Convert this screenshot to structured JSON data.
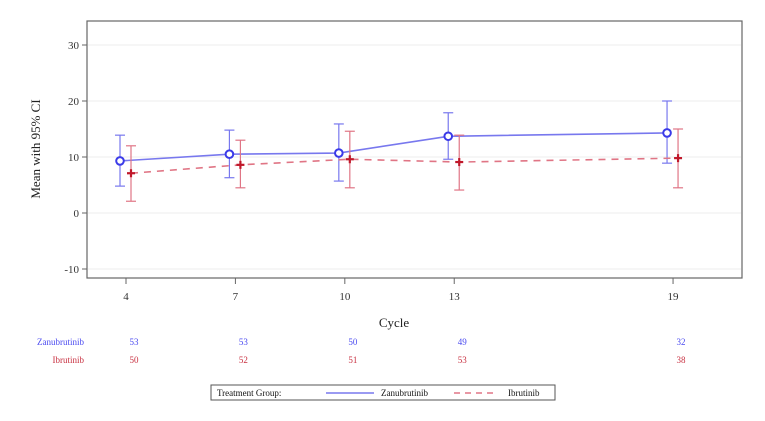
{
  "chart_data": {
    "type": "line",
    "title": "",
    "xlabel": "Cycle",
    "ylabel": "Mean with 95% CI",
    "x": [
      4,
      7,
      10,
      13,
      19
    ],
    "x_tick_labels": [
      "4",
      "7",
      "10",
      "13",
      "19"
    ],
    "y_ticks": [
      30,
      20,
      10,
      0,
      -10
    ],
    "y_tick_labels": [
      "30",
      "20",
      "10",
      "0",
      "-10"
    ],
    "ylim": [
      -12,
      33
    ],
    "xlim": [
      2.3,
      21.1
    ],
    "grid": true,
    "series": [
      {
        "name": "Zanubrutinib",
        "line_style": "solid",
        "marker": "circle",
        "color": "#3a3ae8",
        "line_color": "#7878ee",
        "mean": [
          9.3,
          10.5,
          10.7,
          13.7,
          14.3
        ],
        "ci_lower": [
          4.8,
          6.3,
          5.7,
          9.6,
          8.9
        ],
        "ci_upper": [
          13.9,
          14.8,
          15.9,
          17.9,
          20.0
        ],
        "n_at_risk": [
          53,
          53,
          50,
          49,
          32
        ]
      },
      {
        "name": "Ibrutinib",
        "line_style": "dashed",
        "marker": "plus",
        "color": "#c0182a",
        "line_color": "#e07585",
        "mean": [
          7.1,
          8.6,
          9.6,
          9.1,
          9.8
        ],
        "ci_lower": [
          2.1,
          4.5,
          4.5,
          4.1,
          4.5
        ],
        "ci_upper": [
          12.0,
          13.0,
          14.6,
          13.9,
          15.0
        ],
        "n_at_risk": [
          50,
          52,
          51,
          53,
          38
        ]
      }
    ],
    "legend": {
      "title": "Treatment Group:",
      "position": "bottom",
      "entries": [
        "Zanubrutinib",
        "Ibrutinib"
      ]
    }
  },
  "risk_table": {
    "rows": [
      {
        "label": "Zanubrutinib",
        "color": "#4a4af0",
        "values": [
          "53",
          "53",
          "50",
          "49",
          "32"
        ]
      },
      {
        "label": "Ibrutinib",
        "color": "#c83040",
        "values": [
          "50",
          "52",
          "51",
          "53",
          "38"
        ]
      }
    ]
  }
}
